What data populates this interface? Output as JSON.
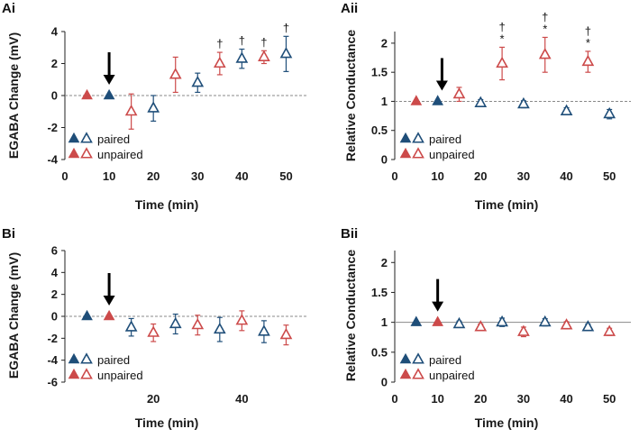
{
  "colors": {
    "paired": "#1f4e79",
    "unpaired": "#cc4a4a",
    "axis": "#222222",
    "dash": "#888888",
    "arrow": "#000000"
  },
  "chart_data": [
    {
      "id": "Ai",
      "panel_label": "Ai",
      "type": "scatter",
      "xlabel": "Time (min)",
      "ylabel": "EGABA Change (mV)",
      "xlim": [
        0,
        55
      ],
      "ylim": [
        -4,
        4
      ],
      "xticks": [
        "0",
        "10",
        "20",
        "30",
        "40",
        "50"
      ],
      "yticks": [
        "-4",
        "-2",
        "0",
        "2",
        "4"
      ],
      "reference_y": 0,
      "reference_style": "dashed",
      "arrow_at_x": 10,
      "legend": {
        "paired": "paired",
        "unpaired": "unpaired"
      },
      "series": [
        {
          "name": "paired",
          "filled": [
            {
              "x": 10,
              "y": 0
            }
          ],
          "open": [
            {
              "x": 20,
              "y": -0.8,
              "err": 0.8
            },
            {
              "x": 30,
              "y": 0.8,
              "err": 0.6
            },
            {
              "x": 40,
              "y": 2.3,
              "err": 0.6
            },
            {
              "x": 50,
              "y": 2.6,
              "err": 1.1
            }
          ]
        },
        {
          "name": "unpaired",
          "filled": [
            {
              "x": 5,
              "y": 0
            }
          ],
          "open": [
            {
              "x": 15,
              "y": -1.0,
              "err": 1.1
            },
            {
              "x": 25,
              "y": 1.3,
              "err": 1.1
            },
            {
              "x": 35,
              "y": 2.0,
              "err": 0.7
            },
            {
              "x": 45,
              "y": 2.4,
              "err": 0.4
            }
          ]
        }
      ],
      "annotations": [
        {
          "x": 35,
          "y": 2.0,
          "err": 0.7,
          "lines": [
            "†"
          ]
        },
        {
          "x": 40,
          "y": 2.3,
          "err": 0.6,
          "lines": [
            "†"
          ]
        },
        {
          "x": 45,
          "y": 2.4,
          "err": 0.4,
          "lines": [
            "†"
          ]
        },
        {
          "x": 50,
          "y": 2.6,
          "err": 1.1,
          "lines": [
            "†"
          ]
        }
      ]
    },
    {
      "id": "Aii",
      "panel_label": "Aii",
      "type": "scatter",
      "xlabel": "Time (min)",
      "ylabel": "Relative Conductance",
      "xlim": [
        0,
        55
      ],
      "ylim": [
        0,
        2.2
      ],
      "xticks": [
        "0",
        "10",
        "20",
        "30",
        "40",
        "50"
      ],
      "yticks": [
        "0",
        "0.5",
        "1",
        "1.5",
        "2"
      ],
      "reference_y": 1,
      "reference_style": "dashed",
      "arrow_at_x": 11,
      "legend": {
        "paired": "paired",
        "unpaired": "unpaired"
      },
      "series": [
        {
          "name": "paired",
          "filled": [
            {
              "x": 10,
              "y": 1.0
            }
          ],
          "open": [
            {
              "x": 20,
              "y": 0.97,
              "err": 0.06
            },
            {
              "x": 30,
              "y": 0.95,
              "err": 0.06
            },
            {
              "x": 40,
              "y": 0.83,
              "err": 0.06
            },
            {
              "x": 50,
              "y": 0.78,
              "err": 0.08
            }
          ]
        },
        {
          "name": "unpaired",
          "filled": [
            {
              "x": 5,
              "y": 1.0
            }
          ],
          "open": [
            {
              "x": 15,
              "y": 1.12,
              "err": 0.12
            },
            {
              "x": 25,
              "y": 1.65,
              "err": 0.28
            },
            {
              "x": 35,
              "y": 1.8,
              "err": 0.3
            },
            {
              "x": 45,
              "y": 1.68,
              "err": 0.18
            }
          ]
        }
      ],
      "annotations": [
        {
          "x": 25,
          "y": 1.65,
          "err": 0.28,
          "lines": [
            "†",
            "*"
          ]
        },
        {
          "x": 35,
          "y": 1.8,
          "err": 0.3,
          "lines": [
            "†",
            "*"
          ]
        },
        {
          "x": 45,
          "y": 1.68,
          "err": 0.18,
          "lines": [
            "†",
            "*"
          ]
        }
      ]
    },
    {
      "id": "Bi",
      "panel_label": "Bi",
      "type": "scatter",
      "xlabel": "Time (min)",
      "ylabel": "EGABA Change (mV)",
      "xlim": [
        0,
        55
      ],
      "ylim": [
        -6,
        6
      ],
      "xticks": [
        "20",
        "40"
      ],
      "xtick_values": [
        20,
        40
      ],
      "yticks": [
        "-6",
        "-4",
        "-2",
        "0",
        "2",
        "4",
        "6"
      ],
      "reference_y": 0,
      "reference_style": "dashed",
      "arrow_at_x": 10,
      "legend": {
        "paired": "paired",
        "unpaired": "unpaired"
      },
      "series": [
        {
          "name": "paired",
          "filled": [
            {
              "x": 5,
              "y": 0
            }
          ],
          "open": [
            {
              "x": 15,
              "y": -1.0,
              "err": 0.8
            },
            {
              "x": 25,
              "y": -0.7,
              "err": 0.9
            },
            {
              "x": 35,
              "y": -1.2,
              "err": 1.1
            },
            {
              "x": 45,
              "y": -1.4,
              "err": 1.0
            }
          ]
        },
        {
          "name": "unpaired",
          "filled": [
            {
              "x": 10,
              "y": 0
            }
          ],
          "open": [
            {
              "x": 20,
              "y": -1.5,
              "err": 0.8
            },
            {
              "x": 30,
              "y": -0.8,
              "err": 0.9
            },
            {
              "x": 40,
              "y": -0.4,
              "err": 0.9
            },
            {
              "x": 50,
              "y": -1.7,
              "err": 0.9
            }
          ]
        }
      ],
      "annotations": []
    },
    {
      "id": "Bii",
      "panel_label": "Bii",
      "type": "scatter",
      "xlabel": "Time (min)",
      "ylabel": "Relative Conductance",
      "xlim": [
        0,
        55
      ],
      "ylim": [
        0,
        2.2
      ],
      "xticks": [
        "0",
        "10",
        "20",
        "30",
        "40",
        "50"
      ],
      "yticks": [
        "0",
        "0.5",
        "1",
        "1.5",
        "2"
      ],
      "reference_y": 1,
      "reference_style": "solid",
      "arrow_at_x": 10,
      "legend": {
        "paired": "paired",
        "unpaired": "unpaired"
      },
      "series": [
        {
          "name": "paired",
          "filled": [
            {
              "x": 5,
              "y": 1.0
            }
          ],
          "open": [
            {
              "x": 15,
              "y": 0.97,
              "err": 0.05
            },
            {
              "x": 25,
              "y": 1.0,
              "err": 0.07
            },
            {
              "x": 35,
              "y": 1.0,
              "err": 0.06
            },
            {
              "x": 45,
              "y": 0.92,
              "err": 0.05
            }
          ]
        },
        {
          "name": "unpaired",
          "filled": [
            {
              "x": 10,
              "y": 1.0
            }
          ],
          "open": [
            {
              "x": 20,
              "y": 0.92,
              "err": 0.05
            },
            {
              "x": 30,
              "y": 0.84,
              "err": 0.08
            },
            {
              "x": 40,
              "y": 0.95,
              "err": 0.06
            },
            {
              "x": 50,
              "y": 0.84,
              "err": 0.06
            }
          ]
        }
      ],
      "annotations": []
    }
  ]
}
